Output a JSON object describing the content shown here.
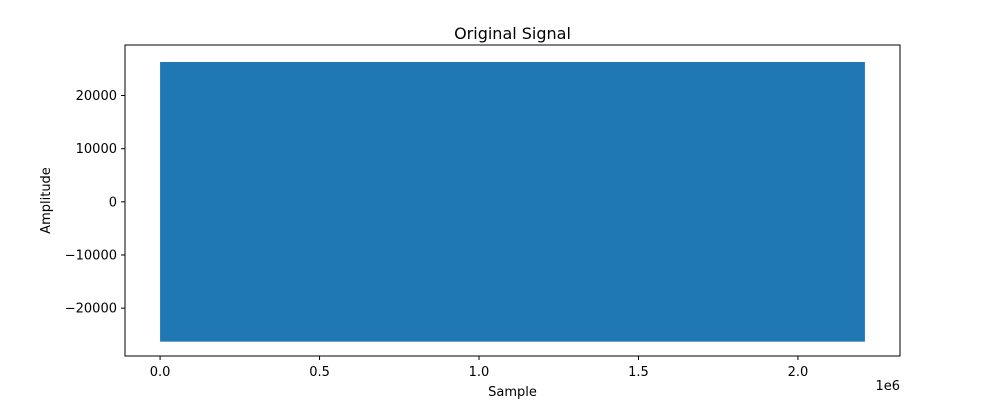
{
  "chart_data": {
    "type": "line",
    "title": "Original Signal",
    "xlabel": "Sample",
    "ylabel": "Amplitude",
    "x_offset_label": "1e6",
    "xlim": [
      -0.11,
      2.32
    ],
    "ylim": [
      -29000,
      29500
    ],
    "x_ticks": [
      0.0,
      0.5,
      1.0,
      1.5,
      2.0
    ],
    "x_tick_labels": [
      "0.0",
      "0.5",
      "1.0",
      "1.5",
      "2.0"
    ],
    "y_ticks": [
      -20000,
      -10000,
      0,
      10000,
      20000
    ],
    "y_tick_labels": [
      "−20000",
      "−10000",
      "0",
      "10000",
      "20000"
    ],
    "grid": false,
    "series": [
      {
        "color": "#1f77b4",
        "x_range": [
          0.0,
          2.21
        ],
        "envelope_min": -26300,
        "envelope_max": 26300
      }
    ]
  }
}
